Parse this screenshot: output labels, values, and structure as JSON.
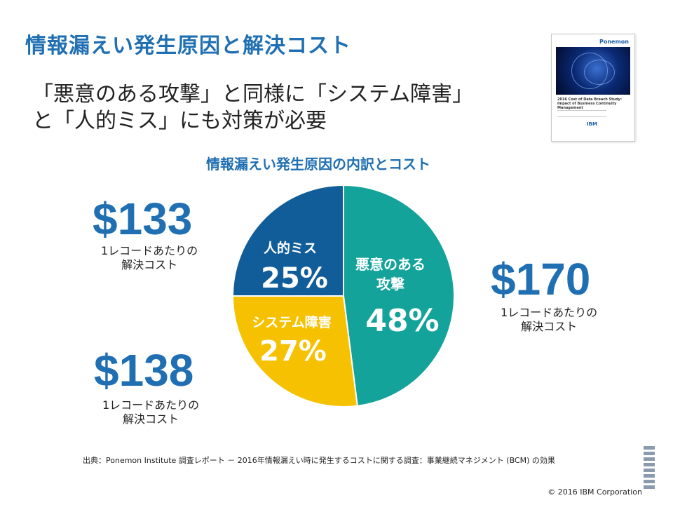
{
  "title": "情報漏えい発生原因と解決コスト",
  "subtitle": {
    "line1": "「悪意のある攻撃」と同様に「システム障害」",
    "line2": "と「人的ミス」にも対策が必要"
  },
  "report_cover": {
    "brand": "Ponemon",
    "title": "2016 Cost of Data Breach Study: Impact of Business Continuity Management",
    "logo": "IBM"
  },
  "chart_data": {
    "type": "pie",
    "title": "情報漏えい発生原因の内訳とコスト",
    "slices": [
      {
        "label": "悪意のある攻撃",
        "value": 48,
        "display": "48%",
        "color": "#13a39b",
        "cost": "$170",
        "cost_note": "1レコードあたりの解決コスト"
      },
      {
        "label": "システム障害",
        "value": 27,
        "display": "27%",
        "color": "#f5c100",
        "cost": "$138",
        "cost_note": "1レコードあたりの解決コスト"
      },
      {
        "label": "人的ミス",
        "value": 25,
        "display": "25%",
        "color": "#115d99",
        "cost": "$133",
        "cost_note": "1レコードあたりの解決コスト"
      }
    ]
  },
  "costs": {
    "human": {
      "amount": "$133",
      "line1": "1レコードあたりの",
      "line2": "解決コスト"
    },
    "malicious": {
      "amount": "$170",
      "line1": "1レコードあたりの",
      "line2": "解決コスト"
    },
    "system": {
      "amount": "$138",
      "line1": "1レコードあたりの",
      "line2": "解決コスト"
    }
  },
  "footer": {
    "source": "出典：Ponemon Institute 調査レポート － 2016年情報漏えい時に発生するコストに関する調査：事業継続マネジメント (BCM) の効果",
    "copyright": "© 2016 IBM Corporation"
  }
}
